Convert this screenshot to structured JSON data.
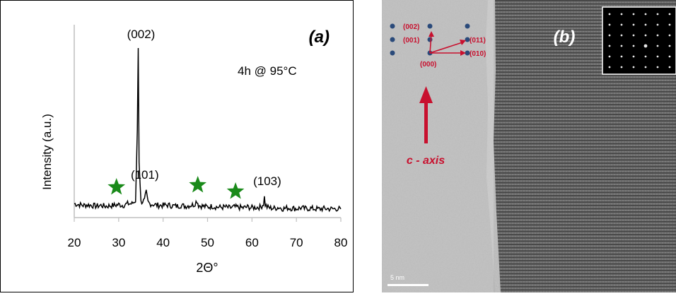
{
  "chart_data": {
    "type": "line",
    "panel_label": "(a)",
    "condition": "4h @ 95°C",
    "xlabel": "2Θ°",
    "ylabel": "Intensity (a.u.)",
    "xlim": [
      20,
      80
    ],
    "x_ticks": [
      "20",
      "30",
      "40",
      "50",
      "60",
      "70",
      "80"
    ],
    "line_color": "#000000",
    "star_color": "#1a8a1a",
    "peaks": [
      {
        "label": "(002)",
        "x": 34.4,
        "y": 1.0
      },
      {
        "label": "(101)",
        "x": 36.2,
        "y": 0.12
      },
      {
        "label": "(103)",
        "x": 62.8,
        "y": 0.09
      }
    ],
    "stars_x": [
      29.5,
      47.8,
      56.3
    ],
    "series": [
      {
        "x": [
          20,
          21,
          22,
          23,
          24,
          25,
          26,
          27,
          28,
          29,
          30,
          31,
          32,
          33,
          33.8,
          34.2,
          34.4,
          34.6,
          35,
          35.8,
          36.2,
          36.6,
          37,
          38,
          39,
          40,
          41,
          42,
          43,
          44,
          45,
          46,
          47,
          47.6,
          48,
          49,
          50,
          51,
          52,
          53,
          54,
          55,
          56,
          57,
          58,
          59,
          60,
          61,
          62,
          62.6,
          62.8,
          63,
          63.4,
          64,
          65,
          66,
          67,
          68,
          69,
          70,
          71,
          72,
          73,
          74,
          75,
          76,
          77,
          78,
          79,
          80
        ],
        "y": [
          0.05,
          0.045,
          0.04,
          0.043,
          0.04,
          0.035,
          0.04,
          0.035,
          0.038,
          0.04,
          0.045,
          0.04,
          0.05,
          0.05,
          0.07,
          0.5,
          1.0,
          0.3,
          0.06,
          0.07,
          0.12,
          0.06,
          0.05,
          0.045,
          0.04,
          0.04,
          0.042,
          0.038,
          0.035,
          0.04,
          0.035,
          0.04,
          0.045,
          0.07,
          0.04,
          0.035,
          0.03,
          0.035,
          0.03,
          0.028,
          0.03,
          0.025,
          0.03,
          0.028,
          0.025,
          0.03,
          0.025,
          0.028,
          0.03,
          0.05,
          0.09,
          0.045,
          0.03,
          0.025,
          0.022,
          0.028,
          0.02,
          0.025,
          0.022,
          0.02,
          0.025,
          0.02,
          0.022,
          0.02,
          0.018,
          0.02,
          0.02,
          0.018,
          0.02,
          0.018
        ]
      }
    ]
  },
  "tem": {
    "panel_label": "(b)",
    "axis_label": "c - axis",
    "scale_bar": "5 nm",
    "accent_color": "#c8102e",
    "dot_color": "#2a4a7a",
    "diffraction_labels": [
      "(002)",
      "(001)",
      "(011)",
      "(010)",
      "(000)"
    ]
  }
}
